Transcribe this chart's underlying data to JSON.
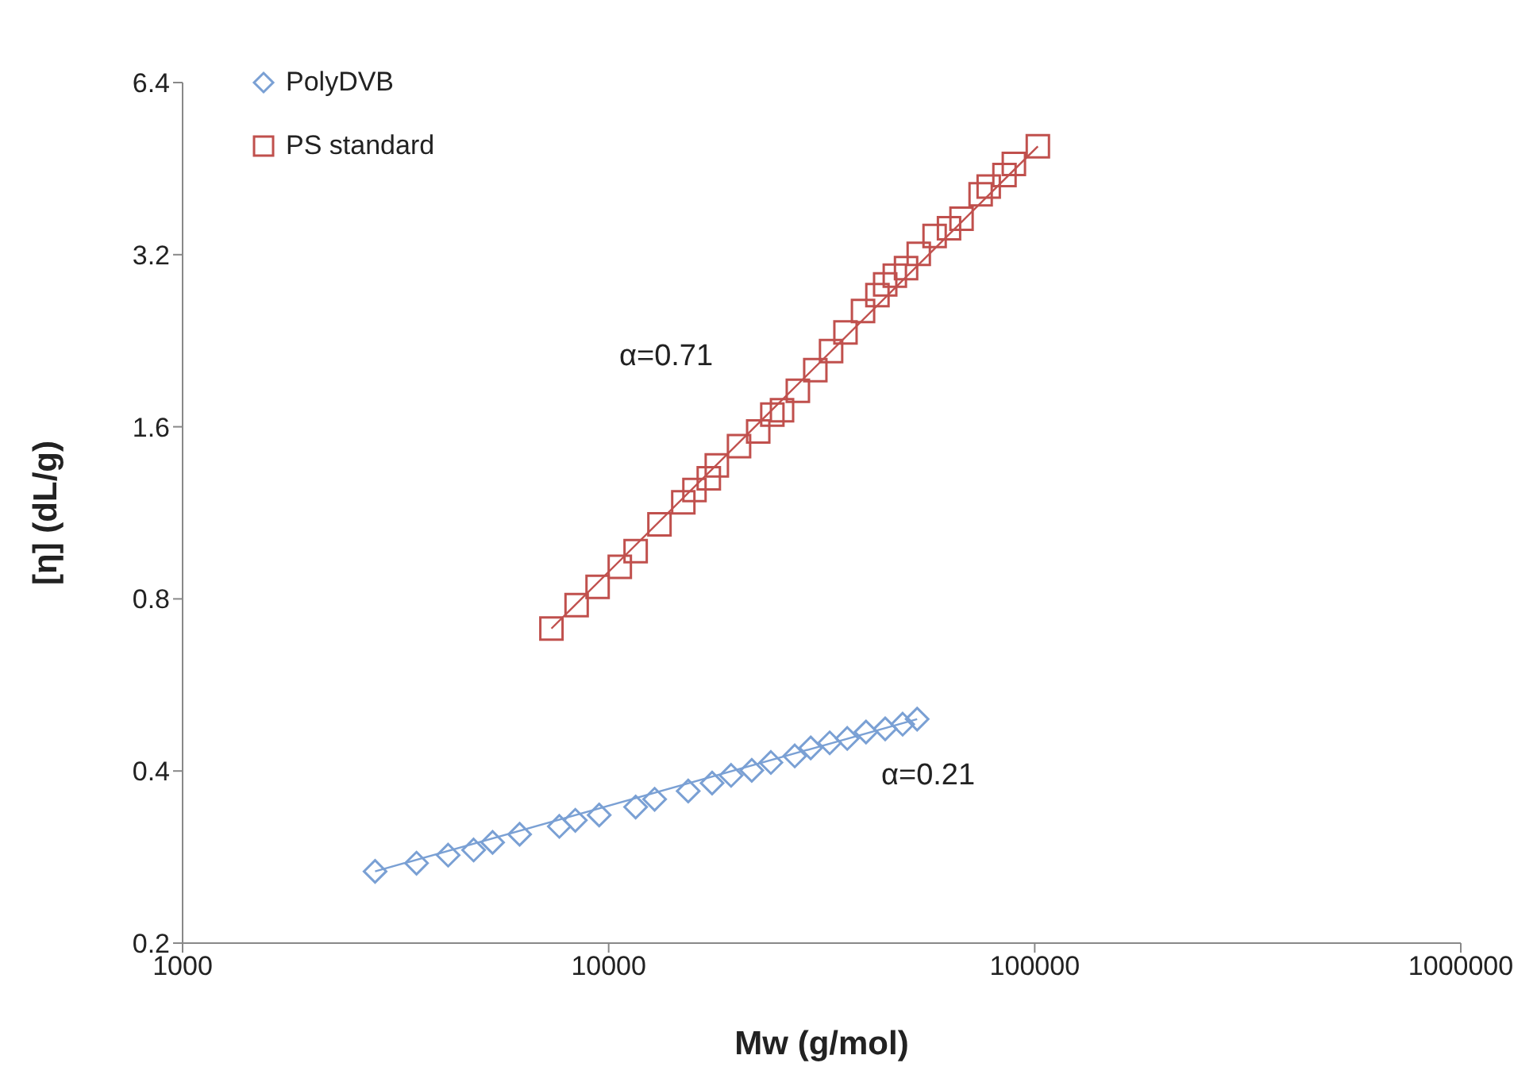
{
  "chart_data": {
    "type": "scatter",
    "xlabel": "Mw (g/mol)",
    "ylabel": "[η] (dL/g)",
    "log": "xy",
    "grid": false,
    "legend": "top left",
    "xlim": [
      1000,
      1000000
    ],
    "xticks": [
      1000,
      10000,
      100000,
      1000000
    ],
    "ylim": [
      0.2,
      6.4
    ],
    "yticks": [
      0.2,
      0.4,
      0.8,
      1.6,
      3.2,
      6.4
    ],
    "series": [
      {
        "name": "PolyDVB",
        "color": "#7aa0d4",
        "marker": "diamond",
        "x": [
          2830,
          3540,
          4200,
          4820,
          5340,
          6180,
          7660,
          8350,
          9500,
          11570,
          12820,
          15370,
          17490,
          19380,
          21670,
          24030,
          27340,
          29800,
          33020,
          36310,
          40180,
          44570,
          48980,
          52970
        ],
        "values": [
          0.267,
          0.276,
          0.285,
          0.291,
          0.3,
          0.31,
          0.32,
          0.328,
          0.335,
          0.346,
          0.357,
          0.369,
          0.381,
          0.393,
          0.401,
          0.414,
          0.425,
          0.439,
          0.448,
          0.456,
          0.468,
          0.474,
          0.483,
          0.493
        ]
      },
      {
        "name": "PS standard",
        "color": "#c0504d",
        "marker": "square",
        "x": [
          7340,
          8410,
          9420,
          10620,
          11570,
          13160,
          14970,
          15900,
          17180,
          17940,
          20230,
          22440,
          24220,
          25520,
          27800,
          30550,
          33270,
          35960,
          39540,
          42740,
          44570,
          46950,
          49890,
          53430,
          58210,
          62930,
          67330,
          74650,
          77980,
          84920,
          89340,
          101700
        ],
        "values": [
          0.71,
          0.78,
          0.84,
          0.91,
          0.97,
          1.08,
          1.18,
          1.24,
          1.3,
          1.37,
          1.48,
          1.57,
          1.68,
          1.71,
          1.85,
          2.01,
          2.17,
          2.34,
          2.55,
          2.72,
          2.84,
          2.94,
          3.03,
          3.21,
          3.45,
          3.56,
          3.7,
          4.08,
          4.21,
          4.41,
          4.61,
          4.95
        ]
      },
      {
        "type": "line",
        "color": "#7aa0d4",
        "marker": "none",
        "x": [
          2830,
          52970
        ],
        "values": [
          0.267,
          0.493
        ]
      },
      {
        "type": "line",
        "color": "#c0504d",
        "marker": "none",
        "x": [
          7340,
          101700
        ],
        "values": [
          0.71,
          4.95
        ]
      }
    ],
    "annotations": [
      "α=0.71",
      "α=0.21"
    ]
  }
}
